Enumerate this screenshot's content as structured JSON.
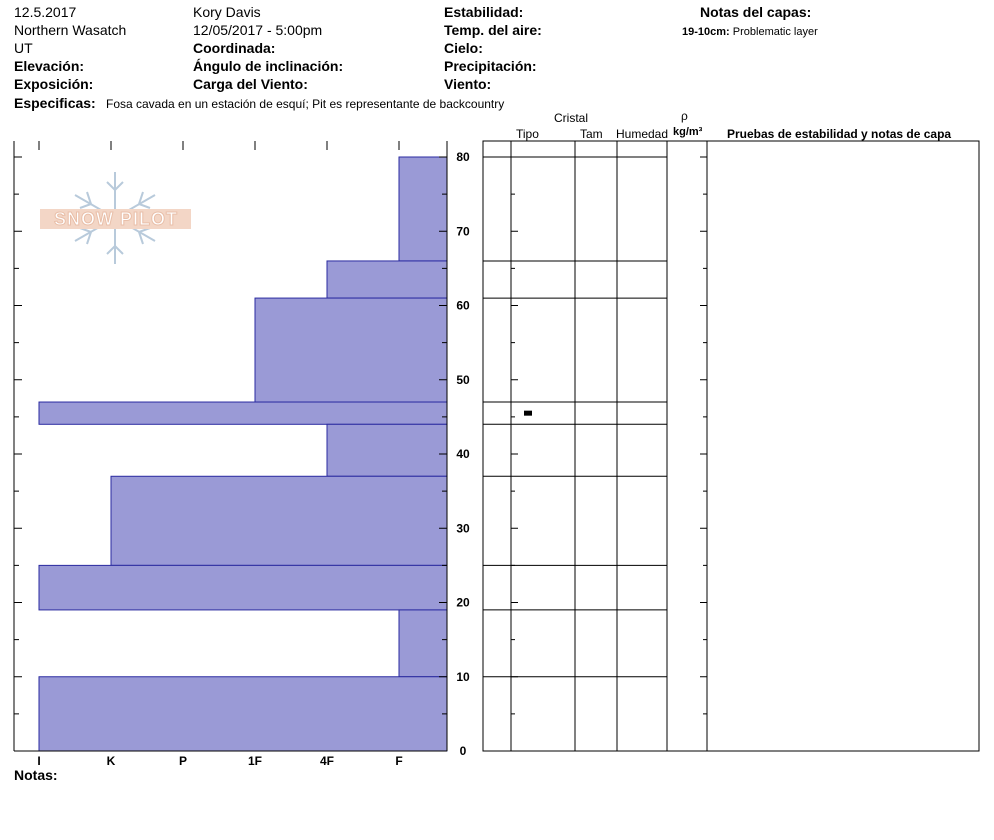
{
  "header": {
    "date": "12.5.2017",
    "region": "Northern Wasatch",
    "state": "UT",
    "observer": "Kory Davis",
    "datetime": "12/05/2017 - 5:00pm",
    "labels": {
      "elevation": "Elevación:",
      "aspect": "Exposición:",
      "coordinates": "Coordinada:",
      "slope_angle": "Ángulo de inclinación:",
      "wind_loading": "Carga del Viento:",
      "stability": "Estabilidad:",
      "air_temp": "Temp. del aire:",
      "sky": "Cielo:",
      "precip": "Precipitación:",
      "wind": "Viento:",
      "layer_notes": "Notas del capas:",
      "specifics": "Especificas:",
      "notes": "Notas:"
    },
    "specifics_text": "Fosa cavada en un estación de esquí; Pit es representante de backcountry",
    "layer_note": {
      "depth": "19-10cm:",
      "text": "Problematic layer"
    }
  },
  "logo_text": "SNOW PILOT",
  "table": {
    "crystal": "Cristal",
    "tipo": "Tipo",
    "tam": "Tam",
    "humedad": "Humedad",
    "rho": "ρ",
    "density_unit": "kg/m³",
    "tests": "Pruebas de estabilidad y notas de capa"
  },
  "colors": {
    "bar_fill": "#9a9ad6",
    "bar_stroke": "#2a2aa0"
  },
  "chart_data": {
    "type": "bar",
    "orientation": "horizontal",
    "title": "",
    "hardness_ticks": [
      "I",
      "K",
      "P",
      "1F",
      "4F",
      "F"
    ],
    "depth_ticks": [
      0,
      10,
      20,
      30,
      40,
      50,
      60,
      70,
      80
    ],
    "ylim": [
      0,
      82
    ],
    "layers": [
      {
        "top": 80,
        "bottom": 66,
        "hardness": "F"
      },
      {
        "top": 66,
        "bottom": 61,
        "hardness": "4F"
      },
      {
        "top": 61,
        "bottom": 47,
        "hardness": "1F"
      },
      {
        "top": 47,
        "bottom": 44,
        "hardness": "I"
      },
      {
        "top": 44,
        "bottom": 37,
        "hardness": "4F"
      },
      {
        "top": 37,
        "bottom": 25,
        "hardness": "K"
      },
      {
        "top": 25,
        "bottom": 19,
        "hardness": "I"
      },
      {
        "top": 19,
        "bottom": 10,
        "hardness": "F"
      },
      {
        "top": 10,
        "bottom": 0,
        "hardness": "I"
      }
    ],
    "grain_marker_depth": 45.5
  }
}
